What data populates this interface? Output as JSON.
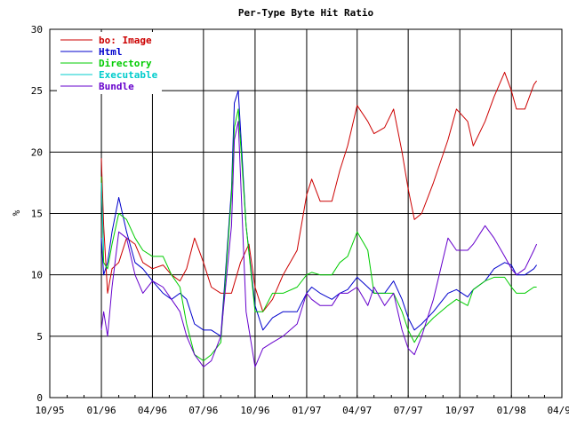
{
  "chart_data": {
    "type": "line",
    "title": "Per-Type Byte Hit Ratio",
    "xlabel": "",
    "ylabel": "%",
    "ylim": [
      0,
      30
    ],
    "y_ticks": [
      0,
      5,
      10,
      15,
      20,
      25,
      30
    ],
    "x_axis": {
      "start_date": "1995-10-01",
      "end_date": "1998-04-01"
    },
    "x_ticks": [
      {
        "label": "10/95",
        "date": "1995-10-01"
      },
      {
        "label": "01/96",
        "date": "1996-01-01"
      },
      {
        "label": "04/96",
        "date": "1996-04-01"
      },
      {
        "label": "07/96",
        "date": "1996-07-01"
      },
      {
        "label": "10/96",
        "date": "1996-10-01"
      },
      {
        "label": "01/97",
        "date": "1997-01-01"
      },
      {
        "label": "04/97",
        "date": "1997-04-01"
      },
      {
        "label": "07/97",
        "date": "1997-07-01"
      },
      {
        "label": "10/97",
        "date": "1997-10-01"
      },
      {
        "label": "01/98",
        "date": "1998-01-01"
      },
      {
        "label": "04/98",
        "date": "1998-04-01"
      }
    ],
    "grid": true,
    "legend_position": "top-left",
    "series": [
      {
        "name": "bo: Image",
        "color": "#cc0000",
        "points": [
          [
            "1996-01-01",
            19.5
          ],
          [
            "1996-01-05",
            14.0
          ],
          [
            "1996-01-12",
            8.5
          ],
          [
            "1996-01-20",
            10.5
          ],
          [
            "1996-02-01",
            11.0
          ],
          [
            "1996-02-15",
            13.0
          ],
          [
            "1996-03-01",
            12.5
          ],
          [
            "1996-03-15",
            11.0
          ],
          [
            "1996-04-01",
            10.5
          ],
          [
            "1996-04-20",
            10.8
          ],
          [
            "1996-05-05",
            10.0
          ],
          [
            "1996-05-20",
            9.5
          ],
          [
            "1996-06-01",
            10.5
          ],
          [
            "1996-06-15",
            13.0
          ],
          [
            "1996-07-01",
            11.0
          ],
          [
            "1996-07-15",
            9.0
          ],
          [
            "1996-08-01",
            8.5
          ],
          [
            "1996-08-20",
            8.5
          ],
          [
            "1996-09-05",
            11.0
          ],
          [
            "1996-09-20",
            12.5
          ],
          [
            "1996-10-01",
            9.0
          ],
          [
            "1996-10-15",
            7.0
          ],
          [
            "1996-11-01",
            8.0
          ],
          [
            "1996-11-20",
            10.0
          ],
          [
            "1996-12-15",
            12.0
          ],
          [
            "1997-01-01",
            16.5
          ],
          [
            "1997-01-10",
            17.8
          ],
          [
            "1997-01-25",
            16.0
          ],
          [
            "1997-02-15",
            16.0
          ],
          [
            "1997-03-01",
            18.5
          ],
          [
            "1997-03-15",
            20.5
          ],
          [
            "1997-04-01",
            23.8
          ],
          [
            "1997-04-20",
            22.5
          ],
          [
            "1997-05-01",
            21.5
          ],
          [
            "1997-05-20",
            22.0
          ],
          [
            "1997-06-05",
            23.5
          ],
          [
            "1997-06-20",
            20.0
          ],
          [
            "1997-07-01",
            17.0
          ],
          [
            "1997-07-12",
            14.5
          ],
          [
            "1997-07-25",
            15.0
          ],
          [
            "1997-08-15",
            17.5
          ],
          [
            "1997-09-10",
            21.0
          ],
          [
            "1997-09-25",
            23.5
          ],
          [
            "1997-10-15",
            22.5
          ],
          [
            "1997-10-25",
            20.5
          ],
          [
            "1997-11-15",
            22.5
          ],
          [
            "1997-12-01",
            24.5
          ],
          [
            "1997-12-20",
            26.5
          ],
          [
            "1998-01-01",
            25.0
          ],
          [
            "1998-01-10",
            23.5
          ],
          [
            "1998-01-25",
            23.5
          ],
          [
            "1998-02-10",
            25.5
          ],
          [
            "1998-02-15",
            25.8
          ]
        ]
      },
      {
        "name": "Html",
        "color": "#0000cc",
        "points": [
          [
            "1996-01-01",
            13.0
          ],
          [
            "1996-01-05",
            10.0
          ],
          [
            "1996-01-12",
            11.0
          ],
          [
            "1996-01-20",
            13.5
          ],
          [
            "1996-02-01",
            16.3
          ],
          [
            "1996-02-15",
            13.5
          ],
          [
            "1996-03-01",
            11.0
          ],
          [
            "1996-03-15",
            10.5
          ],
          [
            "1996-04-01",
            9.5
          ],
          [
            "1996-04-20",
            8.5
          ],
          [
            "1996-05-05",
            8.0
          ],
          [
            "1996-05-20",
            8.5
          ],
          [
            "1996-06-01",
            8.0
          ],
          [
            "1996-06-15",
            6.0
          ],
          [
            "1996-07-01",
            5.5
          ],
          [
            "1996-07-15",
            5.5
          ],
          [
            "1996-08-01",
            5.0
          ],
          [
            "1996-08-20",
            17.0
          ],
          [
            "1996-08-25",
            24.0
          ],
          [
            "1996-09-01",
            25.0
          ],
          [
            "1996-09-15",
            14.0
          ],
          [
            "1996-10-01",
            7.5
          ],
          [
            "1996-10-15",
            5.5
          ],
          [
            "1996-11-01",
            6.5
          ],
          [
            "1996-11-20",
            7.0
          ],
          [
            "1996-12-15",
            7.0
          ],
          [
            "1997-01-01",
            8.5
          ],
          [
            "1997-01-10",
            9.0
          ],
          [
            "1997-01-25",
            8.5
          ],
          [
            "1997-02-15",
            8.0
          ],
          [
            "1997-03-01",
            8.5
          ],
          [
            "1997-03-15",
            8.8
          ],
          [
            "1997-04-01",
            9.8
          ],
          [
            "1997-04-20",
            9.0
          ],
          [
            "1997-05-01",
            8.5
          ],
          [
            "1997-05-20",
            8.5
          ],
          [
            "1997-06-05",
            9.5
          ],
          [
            "1997-06-20",
            8.0
          ],
          [
            "1997-07-01",
            6.5
          ],
          [
            "1997-07-12",
            5.5
          ],
          [
            "1997-07-25",
            6.0
          ],
          [
            "1997-08-15",
            7.0
          ],
          [
            "1997-09-10",
            8.5
          ],
          [
            "1997-09-25",
            8.8
          ],
          [
            "1997-10-15",
            8.2
          ],
          [
            "1997-10-25",
            8.8
          ],
          [
            "1997-11-15",
            9.5
          ],
          [
            "1997-12-01",
            10.5
          ],
          [
            "1997-12-20",
            11.0
          ],
          [
            "1998-01-01",
            10.8
          ],
          [
            "1998-01-10",
            10.0
          ],
          [
            "1998-01-25",
            10.0
          ],
          [
            "1998-02-10",
            10.5
          ],
          [
            "1998-02-15",
            10.8
          ]
        ]
      },
      {
        "name": "Directory",
        "color": "#00cc00",
        "points": [
          [
            "1996-01-01",
            18.0
          ],
          [
            "1996-01-05",
            11.0
          ],
          [
            "1996-01-12",
            10.5
          ],
          [
            "1996-01-20",
            12.5
          ],
          [
            "1996-02-01",
            15.0
          ],
          [
            "1996-02-15",
            14.5
          ],
          [
            "1996-03-01",
            13.0
          ],
          [
            "1996-03-15",
            12.0
          ],
          [
            "1996-04-01",
            11.5
          ],
          [
            "1996-04-20",
            11.5
          ],
          [
            "1996-05-05",
            10.0
          ],
          [
            "1996-05-20",
            9.0
          ],
          [
            "1996-06-01",
            6.0
          ],
          [
            "1996-06-15",
            3.5
          ],
          [
            "1996-07-01",
            3.0
          ],
          [
            "1996-07-15",
            3.5
          ],
          [
            "1996-08-01",
            4.5
          ],
          [
            "1996-08-20",
            16.5
          ],
          [
            "1996-08-25",
            22.0
          ],
          [
            "1996-09-01",
            23.5
          ],
          [
            "1996-09-15",
            14.0
          ],
          [
            "1996-10-01",
            7.0
          ],
          [
            "1996-10-15",
            7.0
          ],
          [
            "1996-11-01",
            8.5
          ],
          [
            "1996-11-20",
            8.5
          ],
          [
            "1996-12-15",
            9.0
          ],
          [
            "1997-01-01",
            10.0
          ],
          [
            "1997-01-10",
            10.2
          ],
          [
            "1997-01-25",
            10.0
          ],
          [
            "1997-02-15",
            10.0
          ],
          [
            "1997-03-01",
            11.0
          ],
          [
            "1997-03-15",
            11.5
          ],
          [
            "1997-04-01",
            13.5
          ],
          [
            "1997-04-20",
            12.0
          ],
          [
            "1997-05-01",
            8.5
          ],
          [
            "1997-05-20",
            8.5
          ],
          [
            "1997-06-05",
            8.5
          ],
          [
            "1997-06-20",
            7.0
          ],
          [
            "1997-07-01",
            5.5
          ],
          [
            "1997-07-12",
            4.5
          ],
          [
            "1997-07-25",
            5.5
          ],
          [
            "1997-08-15",
            6.5
          ],
          [
            "1997-09-10",
            7.5
          ],
          [
            "1997-09-25",
            8.0
          ],
          [
            "1997-10-15",
            7.5
          ],
          [
            "1997-10-25",
            8.8
          ],
          [
            "1997-11-15",
            9.5
          ],
          [
            "1997-12-01",
            9.8
          ],
          [
            "1997-12-20",
            9.8
          ],
          [
            "1998-01-01",
            9.0
          ],
          [
            "1998-01-10",
            8.5
          ],
          [
            "1998-01-25",
            8.5
          ],
          [
            "1998-02-10",
            9.0
          ],
          [
            "1998-02-15",
            9.0
          ]
        ]
      },
      {
        "name": "Executable",
        "color": "#00cccc",
        "points": [
          [
            "1996-01-01",
            17.5
          ],
          [
            "1996-01-05",
            12.0
          ]
        ]
      },
      {
        "name": "Bundle",
        "color": "#6600cc",
        "points": [
          [
            "1996-01-01",
            5.5
          ],
          [
            "1996-01-05",
            7.0
          ],
          [
            "1996-01-12",
            5.0
          ],
          [
            "1996-01-20",
            9.0
          ],
          [
            "1996-02-01",
            13.5
          ],
          [
            "1996-02-15",
            13.0
          ],
          [
            "1996-03-01",
            10.0
          ],
          [
            "1996-03-15",
            8.5
          ],
          [
            "1996-04-01",
            9.5
          ],
          [
            "1996-04-20",
            9.0
          ],
          [
            "1996-05-05",
            8.0
          ],
          [
            "1996-05-20",
            7.0
          ],
          [
            "1996-06-01",
            5.0
          ],
          [
            "1996-06-15",
            3.5
          ],
          [
            "1996-07-01",
            2.5
          ],
          [
            "1996-07-15",
            3.0
          ],
          [
            "1996-08-01",
            5.0
          ],
          [
            "1996-08-20",
            14.0
          ],
          [
            "1996-08-25",
            21.0
          ],
          [
            "1996-09-01",
            22.5
          ],
          [
            "1996-09-15",
            7.0
          ],
          [
            "1996-10-01",
            2.5
          ],
          [
            "1996-10-15",
            4.0
          ],
          [
            "1996-11-01",
            4.5
          ],
          [
            "1996-11-20",
            5.0
          ],
          [
            "1996-12-15",
            6.0
          ],
          [
            "1997-01-01",
            8.5
          ],
          [
            "1997-01-10",
            8.0
          ],
          [
            "1997-01-25",
            7.5
          ],
          [
            "1997-02-15",
            7.5
          ],
          [
            "1997-03-01",
            8.5
          ],
          [
            "1997-03-15",
            8.5
          ],
          [
            "1997-04-01",
            9.0
          ],
          [
            "1997-04-20",
            7.5
          ],
          [
            "1997-05-01",
            9.0
          ],
          [
            "1997-05-20",
            7.5
          ],
          [
            "1997-06-05",
            8.5
          ],
          [
            "1997-06-20",
            5.5
          ],
          [
            "1997-07-01",
            4.0
          ],
          [
            "1997-07-12",
            3.5
          ],
          [
            "1997-07-25",
            5.0
          ],
          [
            "1997-08-15",
            8.0
          ],
          [
            "1997-09-10",
            13.0
          ],
          [
            "1997-09-25",
            12.0
          ],
          [
            "1997-10-15",
            12.0
          ],
          [
            "1997-10-25",
            12.5
          ],
          [
            "1997-11-15",
            14.0
          ],
          [
            "1997-12-01",
            13.0
          ],
          [
            "1997-12-20",
            11.5
          ],
          [
            "1998-01-01",
            10.5
          ],
          [
            "1998-01-10",
            10.0
          ],
          [
            "1998-01-25",
            10.5
          ],
          [
            "1998-02-10",
            12.0
          ],
          [
            "1998-02-15",
            12.5
          ]
        ]
      }
    ]
  }
}
